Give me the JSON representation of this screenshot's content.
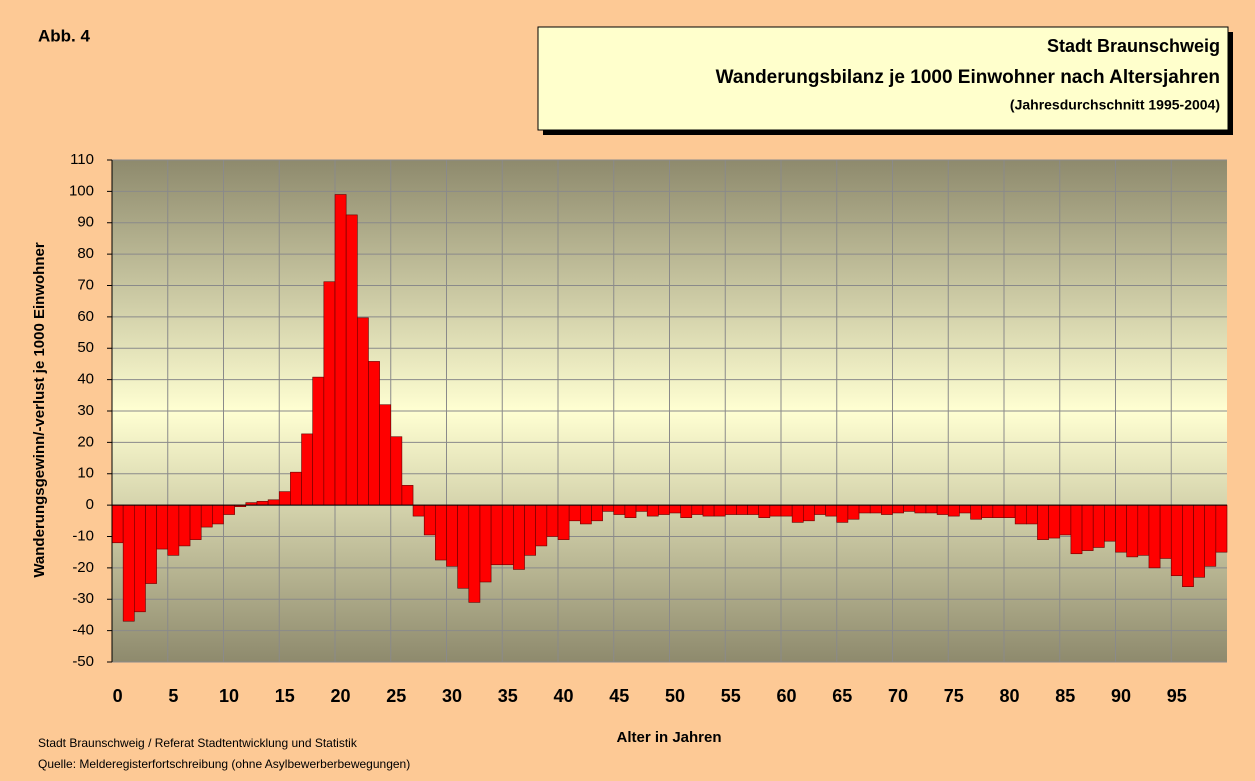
{
  "chart_data": {
    "type": "bar",
    "label": "Abb. 4",
    "title": "Stadt Braunschweig",
    "subtitle": "Wanderungsbilanz je 1000 Einwohner nach Altersjahren",
    "note": "(Jahresdurchschnitt 1995-2004)",
    "ylabel": "Wanderungsgewinn/-verlust je 1000 Einwohner",
    "xlabel": "Alter in Jahren",
    "source": [
      "Stadt Braunschweig / Referat Stadtentwicklung und Statistik",
      "Quelle: Melderegisterfortschreibung (ohne Asylbewerberbewegungen)"
    ],
    "categories": [
      "0",
      null,
      null,
      null,
      null,
      "5",
      null,
      null,
      null,
      null,
      "10",
      null,
      null,
      null,
      null,
      "15",
      null,
      null,
      null,
      null,
      "20",
      null,
      null,
      null,
      null,
      "25",
      null,
      null,
      null,
      null,
      "30",
      null,
      null,
      null,
      null,
      "35",
      null,
      null,
      null,
      null,
      "40",
      null,
      null,
      null,
      null,
      "45",
      null,
      null,
      null,
      null,
      "50",
      null,
      null,
      null,
      null,
      "55",
      null,
      null,
      null,
      null,
      "60",
      null,
      null,
      null,
      null,
      "65",
      null,
      null,
      null,
      null,
      "70",
      null,
      null,
      null,
      null,
      "75",
      null,
      null,
      null,
      null,
      "80",
      null,
      null,
      null,
      null,
      "85",
      null,
      null,
      null,
      null,
      "90",
      null,
      null,
      null,
      null,
      "95",
      null,
      null,
      null,
      null
    ],
    "values": [
      -12,
      -37,
      -34,
      -25,
      -14,
      -16,
      -13,
      -11,
      -7,
      -6,
      -3,
      -0.5,
      0.8,
      1.2,
      1.7,
      4.3,
      10.5,
      22.7,
      40.8,
      71.2,
      99,
      92.5,
      59.7,
      45.8,
      32,
      21.8,
      6.3,
      -3.5,
      -9.5,
      -17.5,
      -19.5,
      -26.5,
      -31,
      -24.5,
      -19,
      -19,
      -20.5,
      -16,
      -13,
      -10,
      -11,
      -5,
      -6,
      -5,
      -2,
      -3,
      -4,
      -2,
      -3.5,
      -3,
      -2.5,
      -4,
      -3,
      -3.5,
      -3.5,
      -3,
      -3,
      -3,
      -4,
      -3.5,
      -3.5,
      -5.5,
      -5,
      -3,
      -3.5,
      -5.5,
      -4.5,
      -2.5,
      -2.5,
      -3,
      -2.5,
      -2,
      -2.5,
      -2.5,
      -3,
      -3.5,
      -2.5,
      -4.5,
      -4,
      -4,
      -4,
      -6,
      -6,
      -11,
      -10.5,
      -9.5,
      -15.5,
      -14.5,
      -13.5,
      -11.5,
      -15,
      -16.5,
      -16,
      -20,
      -17,
      -22.5,
      -26,
      -23,
      -19.5,
      -15
    ],
    "color": "#ff0000",
    "ylim": [
      -50,
      110
    ],
    "yticks": [
      110,
      100,
      90,
      80,
      70,
      60,
      50,
      40,
      30,
      20,
      10,
      0,
      -10,
      -20,
      -30,
      -40,
      -50
    ],
    "grid": true
  }
}
